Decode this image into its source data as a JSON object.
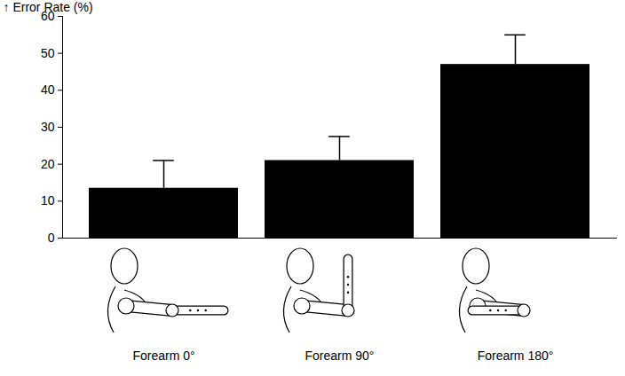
{
  "chart_data": {
    "type": "bar",
    "y_label": "Error Rate (%)",
    "categories": [
      "Forearm 0°",
      "Forearm 90°",
      "Forearm 180°"
    ],
    "values": [
      13.5,
      21,
      47
    ],
    "error_bars": [
      7.5,
      6.5,
      8
    ],
    "color": "#000000",
    "ylim": [
      0,
      60
    ],
    "yticks": [
      0,
      10,
      20,
      30,
      40,
      50,
      60
    ],
    "grid": false
  }
}
